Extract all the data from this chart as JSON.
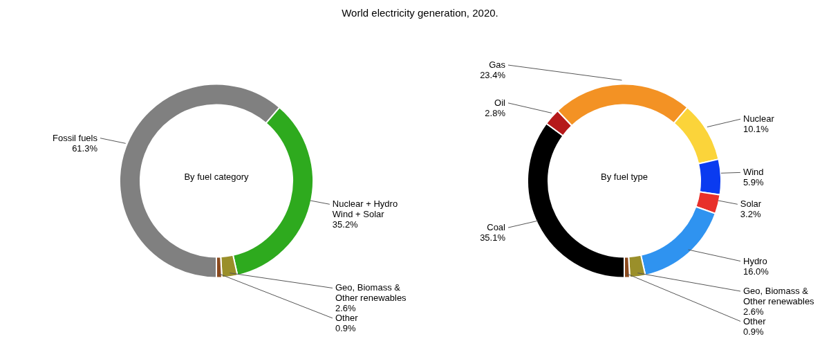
{
  "chart_data": [
    {
      "type": "donut",
      "title": "World electricity generation, 2020.",
      "annotations": [
        "By fuel category"
      ],
      "categories": [
        "Fossil fuels",
        "Nuclear + Hydro\nWind + Solar",
        "Geo, Biomass &\nOther renewables",
        "Other"
      ],
      "values": [
        61.3,
        35.2,
        2.6,
        0.9
      ],
      "value_labels": [
        "61.3%",
        "35.2%",
        "2.6%",
        "0.9%"
      ],
      "colors": [
        "#808080",
        "#2eaa1e",
        "#9a8f2a",
        "#8b4a1e"
      ]
    },
    {
      "type": "donut",
      "annotations": [
        "By fuel type"
      ],
      "categories": [
        "Coal",
        "Oil",
        "Gas",
        "Nuclear",
        "Wind",
        "Solar",
        "Hydro",
        "Geo, Biomass &\nOther renewables",
        "Other"
      ],
      "values": [
        35.1,
        2.8,
        23.4,
        10.1,
        5.9,
        3.2,
        16.0,
        2.6,
        0.9
      ],
      "value_labels": [
        "35.1%",
        "2.8%",
        "23.4%",
        "10.1%",
        "5.9%",
        "3.2%",
        "16.0%",
        "2.6%",
        "0.9%"
      ],
      "colors": [
        "#000000",
        "#b5191a",
        "#f39224",
        "#fbd43a",
        "#0a3bf0",
        "#e8302a",
        "#2f93f0",
        "#9a8f2a",
        "#8b4a1e"
      ]
    }
  ]
}
